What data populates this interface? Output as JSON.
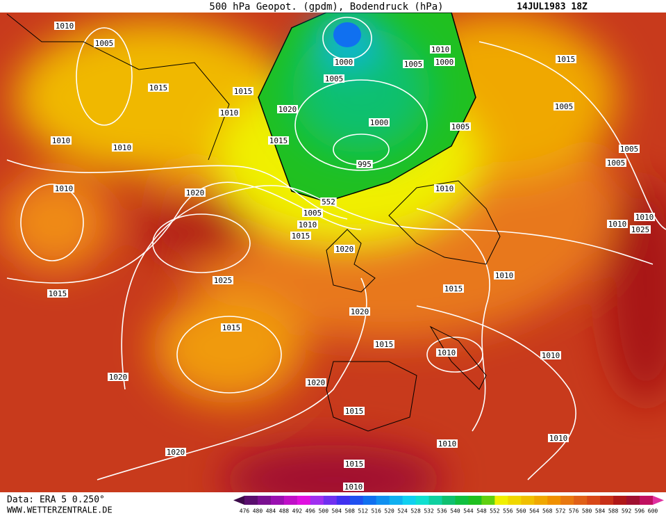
{
  "header": {
    "title": "500 hPa Geopot. (gpdm), Bodendruck (hPa)",
    "date": "14JUL1983 18Z"
  },
  "footer": {
    "source": "Data: ERA 5 0.250°",
    "website": "WWW.WETTERZENTRALE.DE"
  },
  "colorbar": {
    "labels": [
      476,
      480,
      484,
      488,
      492,
      496,
      500,
      504,
      508,
      512,
      516,
      520,
      524,
      528,
      532,
      536,
      540,
      544,
      548,
      552,
      556,
      560,
      564,
      568,
      572,
      576,
      580,
      584,
      588,
      592,
      596,
      600
    ],
    "colors": [
      "#3c0a4a",
      "#5a0f6e",
      "#7a1090",
      "#9a10b0",
      "#c010c8",
      "#e010e0",
      "#a030f0",
      "#7030f0",
      "#4030f0",
      "#2050f0",
      "#1070f0",
      "#1090f0",
      "#10b0f0",
      "#10d0f0",
      "#10e0d0",
      "#10d0a0",
      "#10c070",
      "#10c040",
      "#20c020",
      "#60d010",
      "#f0f000",
      "#f0d800",
      "#f0c000",
      "#f0a800",
      "#f09000",
      "#e87810",
      "#e06018",
      "#d84818",
      "#c83018",
      "#b01818",
      "#a01030",
      "#c01060",
      "#e030a0"
    ]
  },
  "isobar_labels": [
    1010,
    1005,
    1015,
    1015,
    1010,
    1020,
    1015,
    1010,
    1010,
    1010,
    1020,
    1000,
    1005,
    1005,
    1010,
    1000,
    1015,
    1005,
    1000,
    1005,
    995,
    1005,
    1005,
    1010,
    552,
    1005,
    1010,
    1015,
    1010,
    1010,
    1025,
    1020,
    1025,
    1010,
    1015,
    1015,
    1020,
    1015,
    1015,
    1010,
    1010,
    1020,
    1020,
    1015,
    1010,
    1010,
    1020,
    1015,
    1010
  ]
}
